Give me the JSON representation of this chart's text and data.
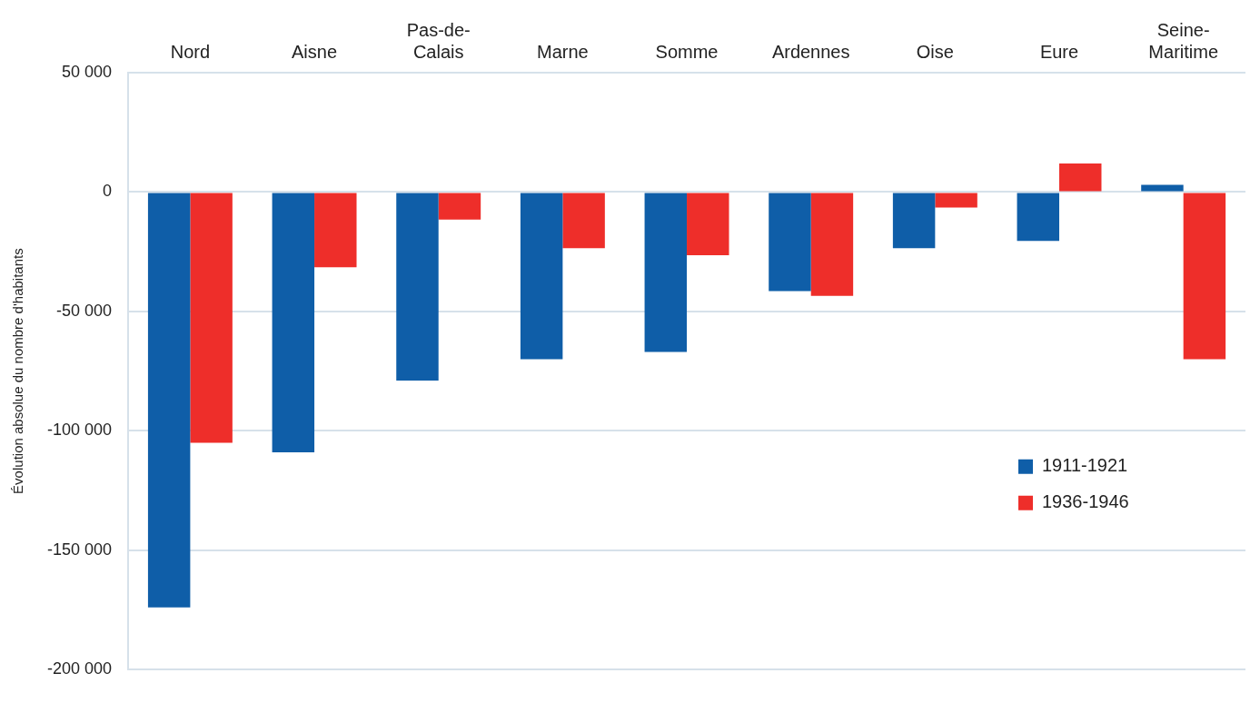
{
  "chart_data": {
    "type": "bar",
    "ylabel": "Évolution absolue du nombre d'habitants",
    "categories": [
      "Nord",
      "Aisne",
      "Pas-de-Calais",
      "Marne",
      "Somme",
      "Ardennes",
      "Oise",
      "Eure",
      "Seine-Maritime"
    ],
    "series": [
      {
        "name": "1911-1921",
        "color": "#0f5ea8",
        "values": [
          -174000,
          -109000,
          -79000,
          -70000,
          -67000,
          -41500,
          -23500,
          -20500,
          3000
        ]
      },
      {
        "name": "1936-1946",
        "color": "#ee2e2a",
        "values": [
          -105000,
          -31500,
          -11500,
          -23500,
          -26500,
          -43500,
          -6500,
          12000,
          -70000
        ]
      }
    ],
    "ylim": [
      -200000,
      50000
    ],
    "yticks": [
      {
        "value": -200000,
        "label": "-200 000"
      },
      {
        "value": -150000,
        "label": "-150 000"
      },
      {
        "value": -100000,
        "label": "-100 000"
      },
      {
        "value": -50000,
        "label": "-50 000"
      },
      {
        "value": 0,
        "label": "0"
      },
      {
        "value": 50000,
        "label": "50 000"
      }
    ],
    "grid": "y",
    "legend": "right"
  }
}
